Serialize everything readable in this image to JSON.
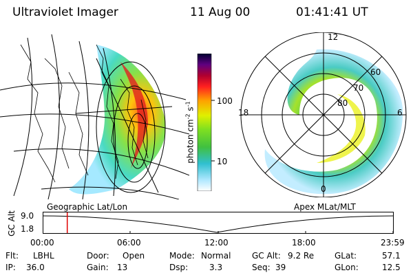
{
  "header": {
    "instrument": "Ultraviolet Imager",
    "date": "11 Aug 00",
    "time": "01:41:41 UT"
  },
  "colorbar": {
    "label": "photon cm",
    "label_sup1": "-2",
    "label_mid": "s",
    "label_sup2": "-1",
    "ticks": [
      "100",
      "10"
    ]
  },
  "polar": {
    "lat_labels": [
      "60",
      "70",
      "80"
    ],
    "mlt_labels": [
      "12",
      "18",
      "6",
      "0"
    ]
  },
  "timeline": {
    "left_title": "Geographic Lat/Lon",
    "right_title": "Apex MLat/MLT",
    "ylabel": "GC Alt",
    "y_ticks": [
      "9.0",
      "1.8"
    ],
    "x_ticks": [
      "00:00",
      "06:00",
      "12:00",
      "18:00",
      "23:59"
    ],
    "current_time_fraction": 0.07,
    "cursor_color": "#e00000"
  },
  "info": [
    {
      "key": "Flt:",
      "val": "LBHL"
    },
    {
      "key": "IP:",
      "val": "36.0"
    },
    {
      "key": "Door:",
      "val": "Open"
    },
    {
      "key": "Gain:",
      "val": "13"
    },
    {
      "key": "Mode:",
      "val": "Normal"
    },
    {
      "key": "Dsp:",
      "val": "3.3"
    },
    {
      "key": "GC Alt:",
      "val": "9.2 Re"
    },
    {
      "key": "Seq:",
      "val": "39"
    },
    {
      "key": "GLat:",
      "val": "57.1"
    },
    {
      "key": "GLon:",
      "val": "12.5"
    }
  ]
}
